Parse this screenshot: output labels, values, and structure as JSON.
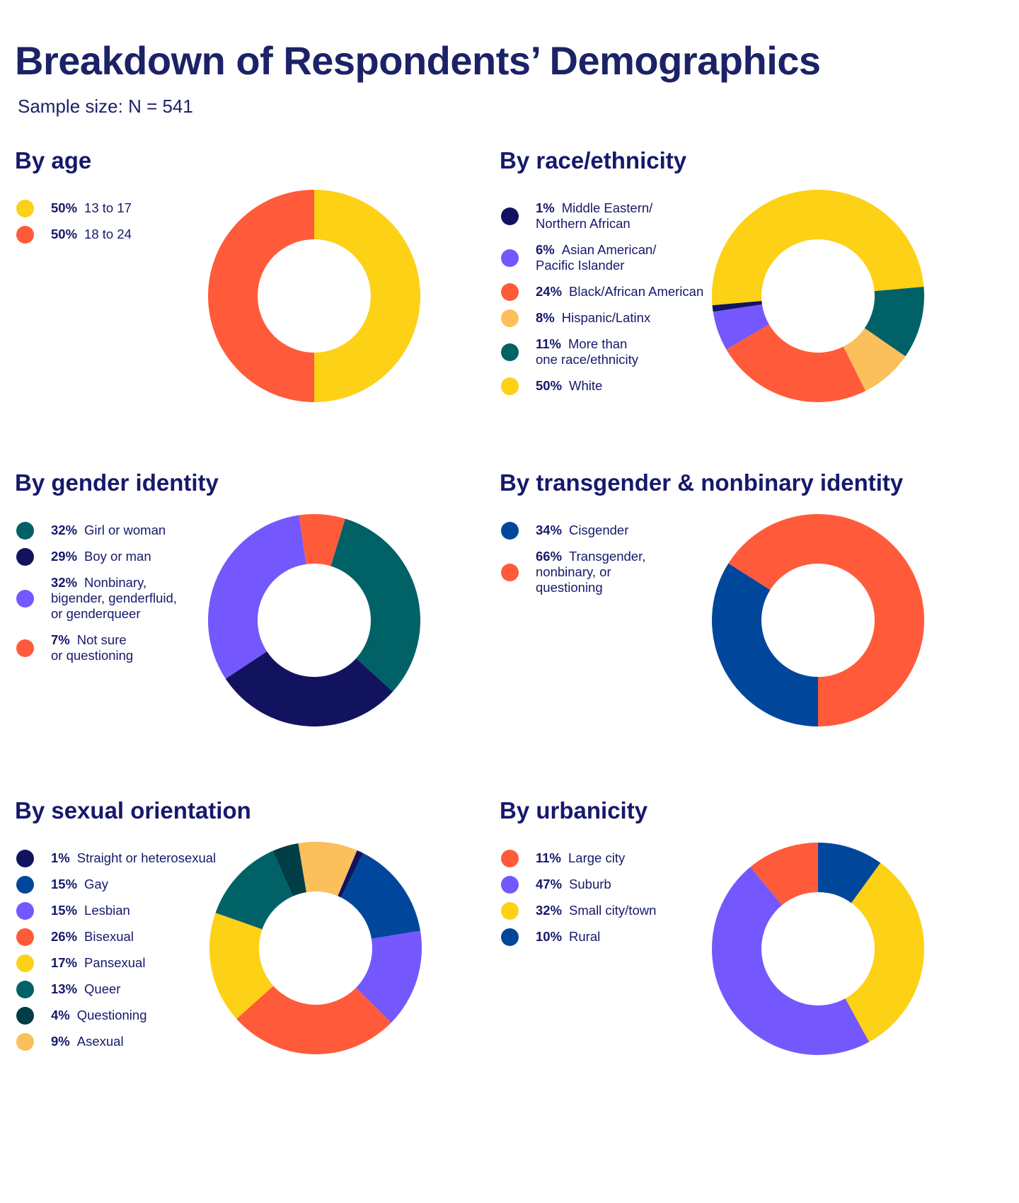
{
  "title": "Breakdown of Respondents’ Demographics",
  "subtitle": "Sample size: N = 541",
  "chart_data": [
    {
      "type": "pie",
      "title": "By age",
      "categories": [
        "13 to 17",
        "18 to 24"
      ],
      "values": [
        50,
        50
      ],
      "labels": [
        "50%",
        "50%"
      ],
      "colors": [
        "#fcd116",
        "#ff5b3a"
      ],
      "legend": "left"
    },
    {
      "type": "pie",
      "title": "By race/ethnicity",
      "categories": [
        "Middle Eastern/\nNorthern African",
        "Asian American/\nPacific Islander",
        "Black/African American",
        "Hispanic/Latinx",
        "More than\none race/ethnicity",
        "White"
      ],
      "values": [
        1,
        6,
        24,
        8,
        11,
        50
      ],
      "labels": [
        "1%",
        "6%",
        "24%",
        "8%",
        "11%",
        "50%"
      ],
      "colors": [
        "#12135f",
        "#7557fe",
        "#ff5b3a",
        "#fbbf5b",
        "#006266",
        "#fcd116"
      ],
      "legend": "left"
    },
    {
      "type": "pie",
      "title": "By gender identity",
      "categories": [
        "Girl or woman",
        "Boy or man",
        "Nonbinary,\nbigender, genderfluid,\nor genderqueer",
        "Not sure\nor questioning"
      ],
      "values": [
        32,
        29,
        32,
        7
      ],
      "labels": [
        "32%",
        "29%",
        "32%",
        "7%"
      ],
      "colors": [
        "#006266",
        "#12135f",
        "#7557fe",
        "#ff5b3a"
      ],
      "legend": "left"
    },
    {
      "type": "pie",
      "title": "By transgender & nonbinary identity",
      "categories": [
        "Cisgender",
        "Transgender,\nnonbinary, or\nquestioning"
      ],
      "values": [
        34,
        66
      ],
      "labels": [
        "34%",
        "66%"
      ],
      "colors": [
        "#00479c",
        "#ff5b3a"
      ],
      "legend": "left"
    },
    {
      "type": "pie",
      "title": "By sexual orientation",
      "categories": [
        "Straight or heterosexual",
        "Gay",
        "Lesbian",
        "Bisexual",
        "Pansexual",
        "Queer",
        "Questioning",
        "Asexual"
      ],
      "values": [
        1,
        15,
        15,
        26,
        17,
        13,
        4,
        9
      ],
      "labels": [
        "1%",
        "15%",
        "15%",
        "26%",
        "17%",
        "13%",
        "4%",
        "9%"
      ],
      "colors": [
        "#12135f",
        "#00479c",
        "#7557fe",
        "#ff5b3a",
        "#fcd116",
        "#006266",
        "#003d47",
        "#fbbf5b"
      ],
      "legend": "left"
    },
    {
      "type": "pie",
      "title": "By urbanicity",
      "categories": [
        "Large city",
        "Suburb",
        "Small city/town",
        "Rural"
      ],
      "values": [
        11,
        47,
        32,
        10
      ],
      "labels": [
        "11%",
        "47%",
        "32%",
        "10%"
      ],
      "colors": [
        "#ff5b3a",
        "#7557fe",
        "#fcd116",
        "#00479c"
      ],
      "legend": "left"
    }
  ]
}
